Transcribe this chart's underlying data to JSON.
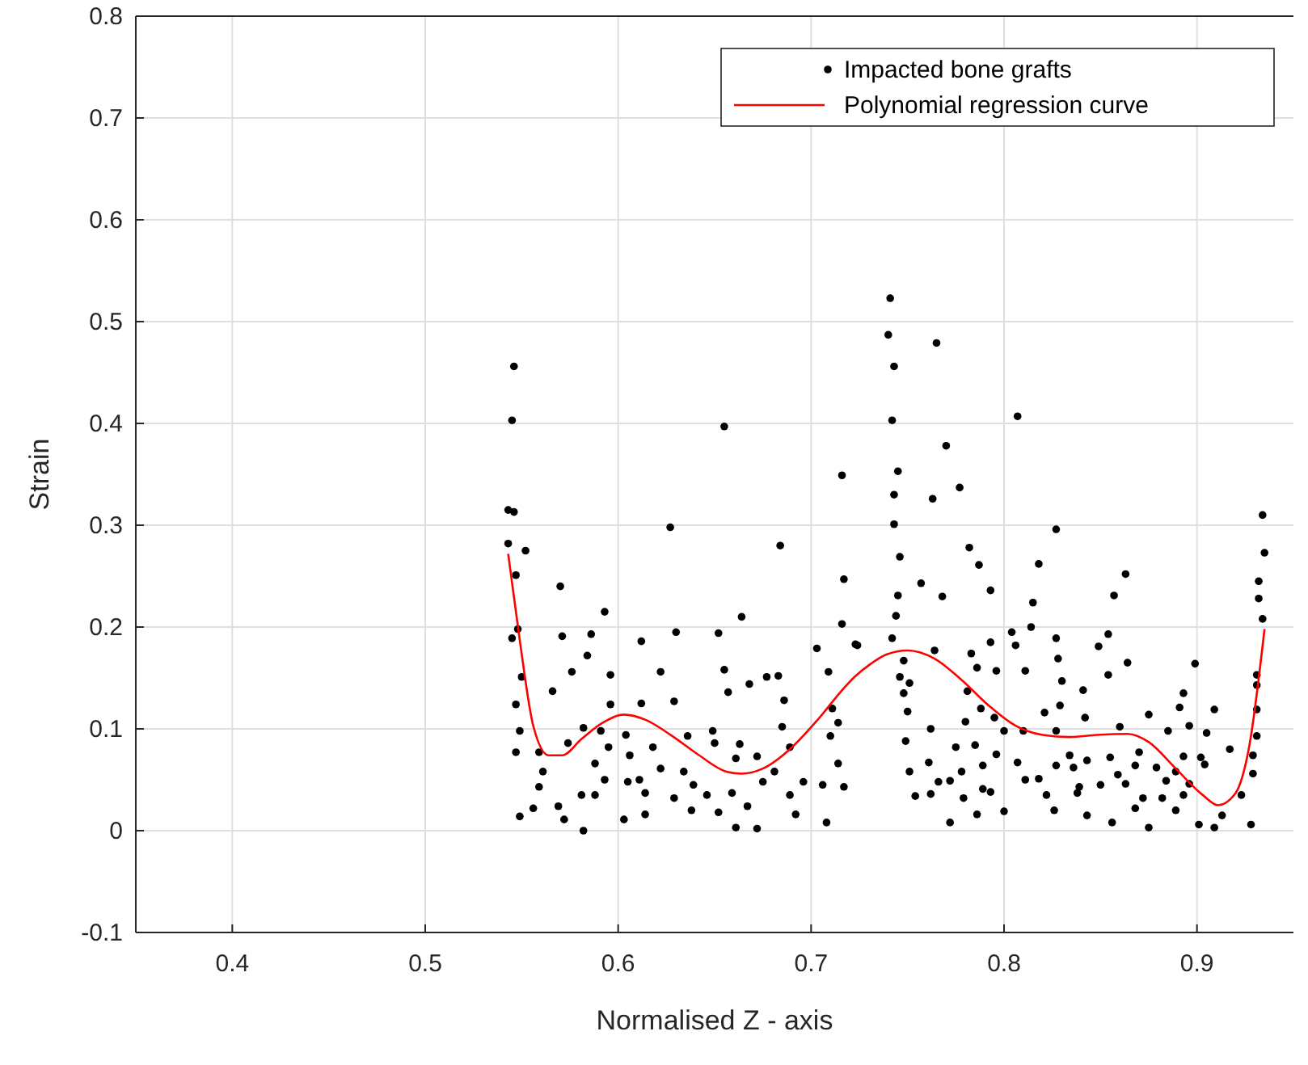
{
  "chart_data": {
    "type": "scatter",
    "xlabel": "Normalised Z - axis",
    "ylabel": "Strain",
    "xlim": [
      0.35,
      0.95
    ],
    "ylim": [
      -0.1,
      0.8
    ],
    "xticks": [
      0.4,
      0.5,
      0.6,
      0.7,
      0.8,
      0.9
    ],
    "yticks": [
      -0.1,
      0,
      0.1,
      0.2,
      0.3,
      0.4,
      0.5,
      0.6,
      0.7,
      0.8
    ],
    "grid": true,
    "legend": "top right",
    "series": [
      {
        "name": "Impacted bone grafts",
        "color": "#000000",
        "marker": "circle",
        "x": [
          0.546,
          0.545,
          0.543,
          0.546,
          0.543,
          0.552,
          0.547,
          0.57,
          0.593,
          0.627,
          0.655,
          0.684,
          0.716,
          0.717,
          0.664,
          0.63,
          0.652,
          0.545,
          0.548,
          0.571,
          0.586,
          0.612,
          0.716,
          0.723,
          0.703,
          0.596,
          0.566,
          0.584,
          0.576,
          0.612,
          0.622,
          0.629,
          0.655,
          0.657,
          0.668,
          0.677,
          0.683,
          0.686,
          0.709,
          0.711,
          0.547,
          0.549,
          0.55,
          0.547,
          0.559,
          0.574,
          0.582,
          0.595,
          0.588,
          0.561,
          0.559,
          0.549,
          0.556,
          0.569,
          0.581,
          0.588,
          0.582,
          0.572,
          0.593,
          0.603,
          0.605,
          0.606,
          0.604,
          0.611,
          0.614,
          0.618,
          0.622,
          0.614,
          0.629,
          0.636,
          0.634,
          0.639,
          0.638,
          0.646,
          0.649,
          0.65,
          0.652,
          0.661,
          0.663,
          0.659,
          0.661,
          0.667,
          0.672,
          0.672,
          0.675,
          0.681,
          0.685,
          0.689,
          0.689,
          0.696,
          0.692,
          0.706,
          0.708,
          0.71,
          0.714,
          0.714,
          0.717,
          0.596,
          0.591,
          0.741,
          0.74,
          0.743,
          0.765,
          0.742,
          0.807,
          0.77,
          0.745,
          0.777,
          0.743,
          0.763,
          0.743,
          0.827,
          0.934,
          0.935,
          0.782,
          0.787,
          0.818,
          0.746,
          0.757,
          0.745,
          0.768,
          0.793,
          0.863,
          0.857,
          0.815,
          0.932,
          0.932,
          0.934,
          0.744,
          0.742,
          0.724,
          0.804,
          0.814,
          0.827,
          0.854,
          0.849,
          0.793,
          0.783,
          0.764,
          0.748,
          0.864,
          0.899,
          0.854,
          0.828,
          0.806,
          0.811,
          0.931,
          0.931,
          0.746,
          0.751,
          0.796,
          0.786,
          0.781,
          0.83,
          0.841,
          0.748,
          0.75,
          0.788,
          0.795,
          0.762,
          0.78,
          0.821,
          0.829,
          0.842,
          0.86,
          0.875,
          0.893,
          0.891,
          0.909,
          0.931,
          0.931,
          0.749,
          0.8,
          0.81,
          0.827,
          0.885,
          0.896,
          0.905,
          0.775,
          0.785,
          0.796,
          0.807,
          0.834,
          0.855,
          0.87,
          0.893,
          0.902,
          0.917,
          0.929,
          0.751,
          0.761,
          0.778,
          0.789,
          0.811,
          0.827,
          0.836,
          0.843,
          0.859,
          0.868,
          0.879,
          0.889,
          0.904,
          0.929,
          0.766,
          0.772,
          0.789,
          0.818,
          0.839,
          0.85,
          0.863,
          0.884,
          0.896,
          0.754,
          0.762,
          0.779,
          0.793,
          0.822,
          0.838,
          0.872,
          0.882,
          0.893,
          0.923,
          0.786,
          0.8,
          0.826,
          0.843,
          0.856,
          0.868,
          0.875,
          0.889,
          0.901,
          0.909,
          0.913,
          0.928,
          0.772
        ],
        "values": [
          0.456,
          0.403,
          0.315,
          0.313,
          0.282,
          0.275,
          0.251,
          0.24,
          0.215,
          0.298,
          0.397,
          0.28,
          0.349,
          0.247,
          0.21,
          0.195,
          0.194,
          0.189,
          0.198,
          0.191,
          0.193,
          0.186,
          0.203,
          0.183,
          0.179,
          0.153,
          0.137,
          0.172,
          0.156,
          0.125,
          0.156,
          0.127,
          0.158,
          0.136,
          0.144,
          0.151,
          0.152,
          0.128,
          0.156,
          0.12,
          0.124,
          0.098,
          0.151,
          0.077,
          0.077,
          0.086,
          0.101,
          0.082,
          0.066,
          0.058,
          0.043,
          0.014,
          0.022,
          0.024,
          0.035,
          0.035,
          0.0,
          0.011,
          0.05,
          0.011,
          0.048,
          0.074,
          0.094,
          0.05,
          0.037,
          0.082,
          0.061,
          0.016,
          0.032,
          0.093,
          0.058,
          0.045,
          0.02,
          0.035,
          0.098,
          0.086,
          0.018,
          0.071,
          0.085,
          0.037,
          0.003,
          0.024,
          0.002,
          0.073,
          0.048,
          0.058,
          0.102,
          0.082,
          0.035,
          0.048,
          0.016,
          0.045,
          0.008,
          0.093,
          0.106,
          0.066,
          0.043,
          0.124,
          0.098,
          0.523,
          0.487,
          0.456,
          0.479,
          0.403,
          0.407,
          0.378,
          0.353,
          0.337,
          0.33,
          0.326,
          0.301,
          0.296,
          0.31,
          0.273,
          0.278,
          0.261,
          0.262,
          0.269,
          0.243,
          0.231,
          0.23,
          0.236,
          0.252,
          0.231,
          0.224,
          0.245,
          0.228,
          0.208,
          0.211,
          0.189,
          0.182,
          0.195,
          0.2,
          0.189,
          0.193,
          0.181,
          0.185,
          0.174,
          0.177,
          0.167,
          0.165,
          0.164,
          0.153,
          0.169,
          0.182,
          0.157,
          0.153,
          0.143,
          0.151,
          0.145,
          0.157,
          0.16,
          0.137,
          0.147,
          0.138,
          0.135,
          0.117,
          0.12,
          0.111,
          0.1,
          0.107,
          0.116,
          0.123,
          0.111,
          0.102,
          0.114,
          0.135,
          0.121,
          0.119,
          0.119,
          0.093,
          0.088,
          0.098,
          0.098,
          0.098,
          0.098,
          0.103,
          0.096,
          0.082,
          0.084,
          0.075,
          0.067,
          0.074,
          0.072,
          0.077,
          0.073,
          0.072,
          0.08,
          0.074,
          0.058,
          0.067,
          0.058,
          0.064,
          0.05,
          0.064,
          0.062,
          0.069,
          0.055,
          0.064,
          0.062,
          0.058,
          0.065,
          0.056,
          0.048,
          0.049,
          0.041,
          0.051,
          0.043,
          0.045,
          0.046,
          0.049,
          0.046,
          0.034,
          0.036,
          0.032,
          0.038,
          0.035,
          0.037,
          0.032,
          0.032,
          0.035,
          0.035,
          0.016,
          0.019,
          0.02,
          0.015,
          0.008,
          0.022,
          0.003,
          0.02,
          0.006,
          0.003,
          0.015,
          0.006,
          0.008
        ]
      },
      {
        "name": "Polynomial regression curve",
        "type": "line",
        "color": "#ff0000",
        "marker": "none",
        "line_style": "solid",
        "x": [
          0.543,
          0.549,
          0.556,
          0.564,
          0.571,
          0.581,
          0.592,
          0.603,
          0.614,
          0.628,
          0.642,
          0.656,
          0.664,
          0.675,
          0.689,
          0.703,
          0.717,
          0.7225,
          0.731,
          0.739,
          0.75,
          0.764,
          0.778,
          0.792,
          0.806,
          0.82,
          0.834,
          0.848,
          0.864,
          0.875,
          0.889,
          0.903,
          0.911,
          0.92,
          0.927,
          0.935
        ],
        "values": [
          0.272,
          0.187,
          0.103,
          0.074,
          0.074,
          0.09,
          0.106,
          0.114,
          0.109,
          0.093,
          0.074,
          0.058,
          0.056,
          0.061,
          0.08,
          0.108,
          0.14,
          0.151,
          0.164,
          0.173,
          0.177,
          0.169,
          0.148,
          0.123,
          0.103,
          0.094,
          0.092,
          0.094,
          0.095,
          0.087,
          0.061,
          0.035,
          0.025,
          0.037,
          0.082,
          0.198
        ]
      }
    ]
  }
}
